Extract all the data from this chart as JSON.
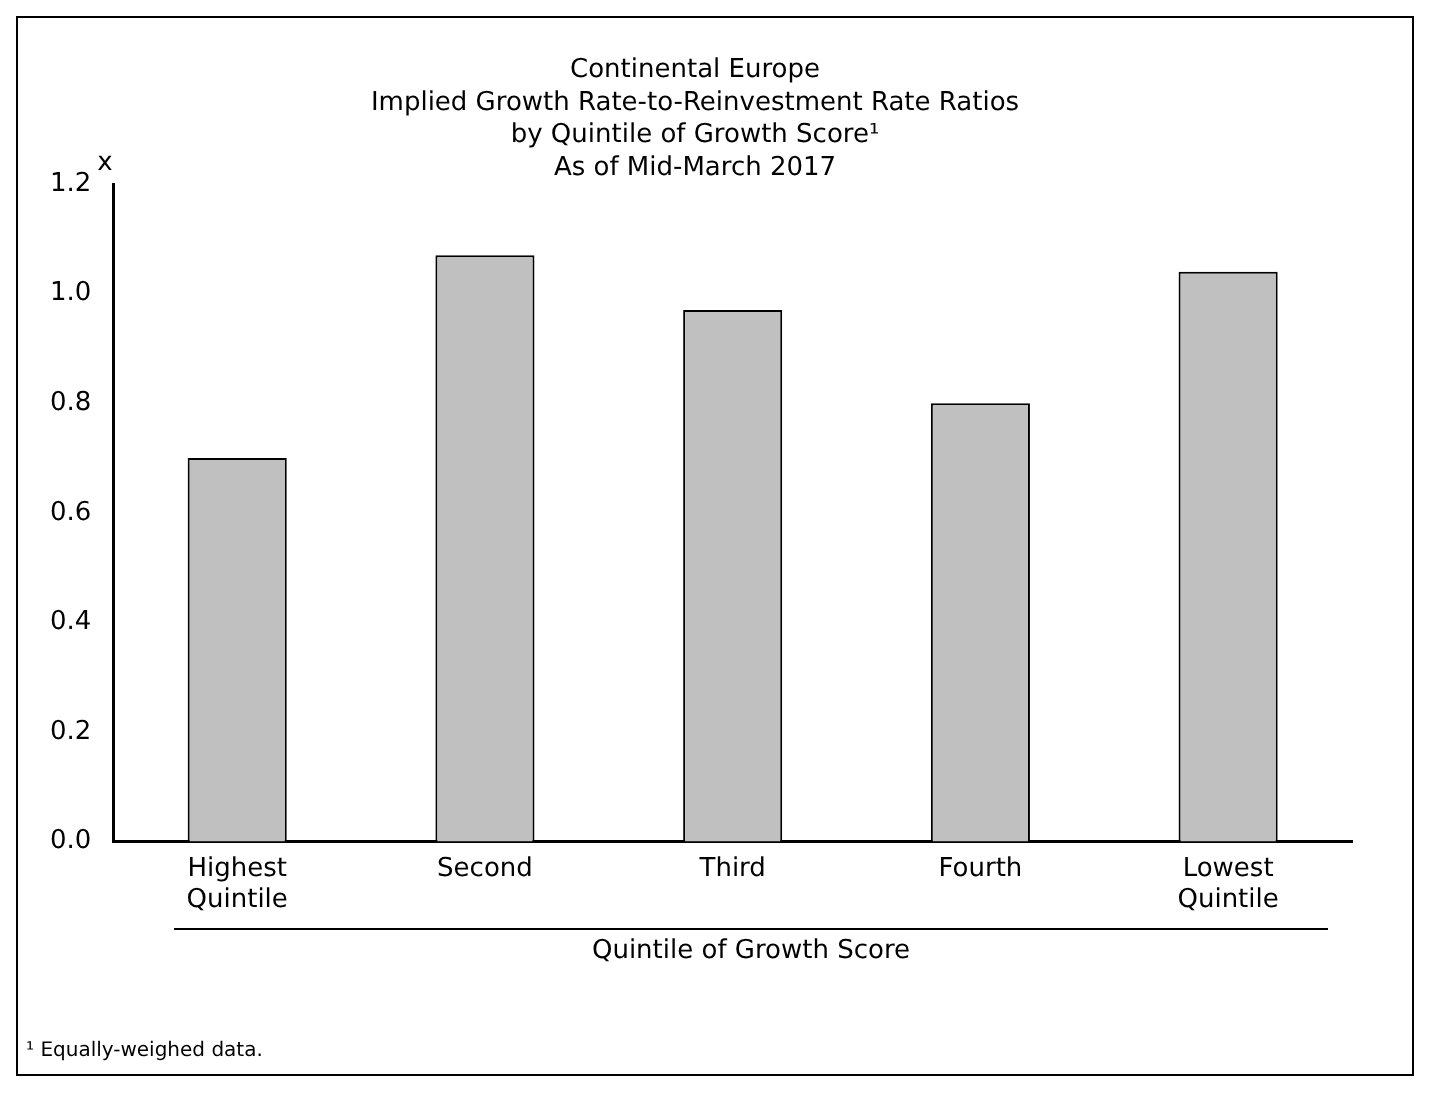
{
  "chart_data": {
    "type": "bar",
    "title": "Continental Europe\nImplied Growth Rate-to-Reinvestment Rate Ratios\nby Quintile of Growth Score¹\nAs of Mid-March 2017",
    "ylabel": "x",
    "xlabel": "Quintile of Growth Score",
    "categories": [
      "Highest\nQuintile",
      "Second",
      "Third",
      "Fourth",
      "Lowest\nQuintile"
    ],
    "values": [
      0.7,
      1.07,
      0.97,
      0.8,
      1.04
    ],
    "color": "#c0c0c0",
    "ylim": [
      0,
      1.2
    ],
    "yticks": [
      {
        "value": 0,
        "label": "0.0"
      },
      {
        "value": 0.2,
        "label": "0.2"
      },
      {
        "value": 0.4,
        "label": "0.4"
      },
      {
        "value": 0.6,
        "label": "0.6"
      },
      {
        "value": 0.8,
        "label": "0.8"
      },
      {
        "value": 1.0,
        "label": "1.0"
      },
      {
        "value": 1.2,
        "label": "1.2"
      }
    ],
    "grid": false,
    "legend": false,
    "annotations": [
      "¹ Equally-weighed data."
    ]
  }
}
